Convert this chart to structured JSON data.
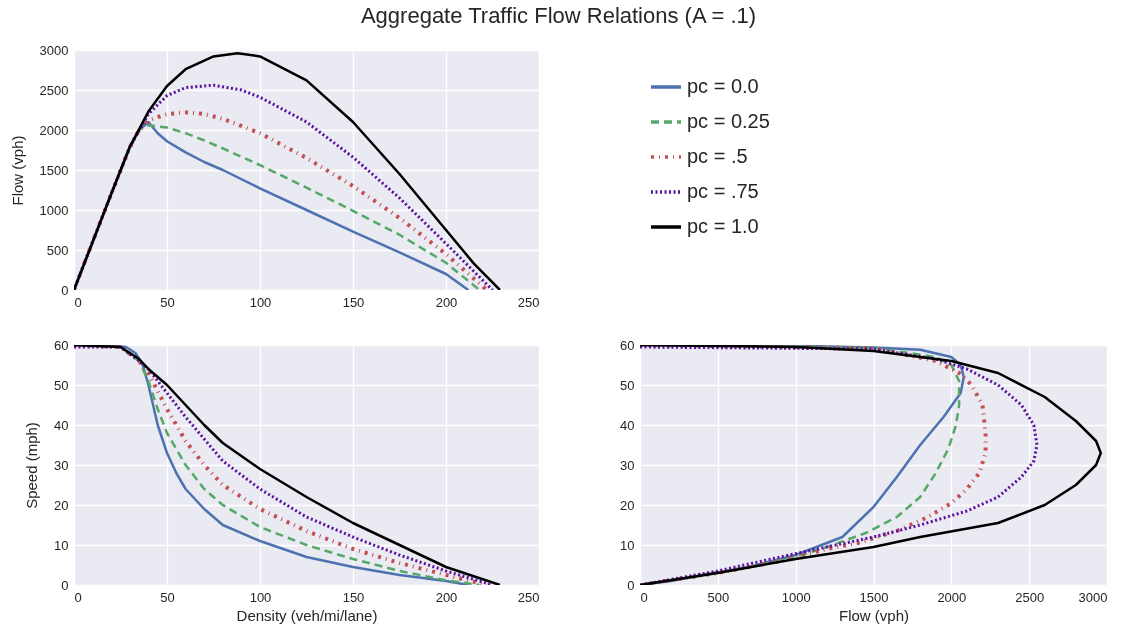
{
  "chart_data": [
    {
      "type": "line",
      "title": "Aggregate Traffic Flow Relations (A = .1)",
      "ylabel": "Flow (vph)",
      "xlim": [
        0,
        250
      ],
      "xticks": [
        0,
        50,
        100,
        150,
        200,
        250
      ],
      "ylim": [
        0,
        3000
      ],
      "yticks": [
        0,
        500,
        1000,
        1500,
        2000,
        2500,
        3000
      ],
      "grid": true,
      "legend": "right",
      "marker": "none",
      "series": [
        {
          "name": "pc = 0.0",
          "color": "#4c72b0",
          "line_style": "solid",
          "x": [
            0,
            10,
            20,
            30,
            35,
            40,
            45,
            50,
            60,
            70,
            80,
            100,
            125,
            150,
            175,
            200,
            212
          ],
          "values": [
            0,
            600,
            1200,
            1780,
            2000,
            2100,
            1960,
            1860,
            1720,
            1600,
            1500,
            1270,
            1000,
            730,
            470,
            200,
            0
          ]
        },
        {
          "name": "pc = 0.25",
          "color": "#55a868",
          "line_style": "dashed",
          "x": [
            0,
            10,
            20,
            30,
            35,
            40,
            50,
            60,
            70,
            80,
            100,
            125,
            150,
            175,
            200,
            218
          ],
          "values": [
            0,
            600,
            1200,
            1780,
            2000,
            2060,
            2030,
            1960,
            1870,
            1770,
            1560,
            1280,
            990,
            690,
            340,
            0
          ]
        },
        {
          "name": "pc = .5",
          "color": "#c44e52",
          "line_style": "dashdot",
          "x": [
            0,
            10,
            20,
            30,
            35,
            40,
            50,
            60,
            70,
            80,
            100,
            125,
            150,
            175,
            200,
            222
          ],
          "values": [
            0,
            600,
            1200,
            1780,
            2000,
            2120,
            2200,
            2220,
            2200,
            2140,
            1960,
            1650,
            1300,
            900,
            450,
            0
          ]
        },
        {
          "name": "pc = .75",
          "color": "#5a0fa0",
          "line_style": "dotted",
          "x": [
            0,
            10,
            20,
            30,
            40,
            50,
            60,
            75,
            90,
            100,
            125,
            150,
            175,
            200,
            225
          ],
          "values": [
            0,
            600,
            1200,
            1790,
            2200,
            2430,
            2530,
            2560,
            2500,
            2410,
            2100,
            1660,
            1150,
            580,
            0
          ]
        },
        {
          "name": "pc = 1.0",
          "color": "#000000",
          "line_style": "solid",
          "x": [
            0,
            10,
            20,
            30,
            40,
            50,
            60,
            75,
            88,
            100,
            125,
            150,
            175,
            200,
            215,
            229
          ],
          "values": [
            0,
            600,
            1200,
            1790,
            2230,
            2550,
            2760,
            2920,
            2960,
            2920,
            2620,
            2100,
            1450,
            750,
            330,
            0
          ]
        }
      ]
    },
    {
      "type": "line",
      "xlabel": "Density (veh/mi/lane)",
      "ylabel": "Speed (mph)",
      "xlim": [
        0,
        250
      ],
      "xticks": [
        0,
        50,
        100,
        150,
        200,
        250
      ],
      "ylim": [
        0,
        60
      ],
      "yticks": [
        0,
        10,
        20,
        30,
        40,
        50,
        60
      ],
      "grid": true,
      "marker": "none",
      "series": [
        {
          "name": "pc = 0.0",
          "color": "#4c72b0",
          "line_style": "solid",
          "x": [
            0,
            20,
            28,
            33,
            37,
            40,
            42,
            45,
            50,
            55,
            60,
            70,
            80,
            100,
            125,
            150,
            175,
            200,
            212
          ],
          "values": [
            60,
            59.8,
            59.5,
            58,
            55,
            50,
            46,
            40,
            33,
            28,
            24,
            19,
            15,
            11,
            7,
            4.5,
            2.5,
            1,
            0
          ]
        },
        {
          "name": "pc = 0.25",
          "color": "#55a868",
          "line_style": "dashed",
          "x": [
            0,
            25,
            35,
            40,
            45,
            50,
            60,
            70,
            80,
            100,
            125,
            150,
            175,
            200,
            218
          ],
          "values": [
            60,
            59.5,
            56,
            51,
            44,
            38,
            30,
            24,
            20,
            14.5,
            10,
            6.5,
            3.5,
            1.2,
            0
          ]
        },
        {
          "name": "pc = .5",
          "color": "#c44e52",
          "line_style": "dashdot",
          "x": [
            0,
            25,
            35,
            40,
            50,
            60,
            70,
            80,
            100,
            125,
            150,
            175,
            200,
            222
          ],
          "values": [
            60,
            59.5,
            56,
            53,
            44,
            36,
            30,
            25,
            19,
            13.5,
            9,
            5.5,
            2.5,
            0
          ]
        },
        {
          "name": "pc = .75",
          "color": "#5a0fa0",
          "line_style": "dotted",
          "x": [
            0,
            25,
            35,
            40,
            50,
            60,
            70,
            80,
            100,
            125,
            150,
            175,
            200,
            225
          ],
          "values": [
            59.5,
            59.5,
            56,
            54,
            48,
            42,
            36.5,
            31,
            24,
            17,
            12,
            7.5,
            3.5,
            0
          ]
        },
        {
          "name": "pc = 1.0",
          "color": "#000000",
          "line_style": "solid",
          "x": [
            0,
            25,
            35,
            40,
            50,
            60,
            70,
            80,
            100,
            125,
            150,
            175,
            200,
            229
          ],
          "values": [
            60,
            59.5,
            56.5,
            54,
            50,
            45,
            40,
            35.5,
            29,
            22,
            15.5,
            10,
            4.5,
            0
          ]
        }
      ]
    },
    {
      "type": "line",
      "xlabel": "Flow (vph)",
      "xlim": [
        0,
        3000
      ],
      "xticks": [
        0,
        500,
        1000,
        1500,
        2000,
        2500,
        3000
      ],
      "ylim": [
        0,
        60
      ],
      "yticks": [
        0,
        10,
        20,
        30,
        40,
        50,
        60
      ],
      "grid": true,
      "marker": "none",
      "series": [
        {
          "name": "pc = 0.0",
          "color": "#4c72b0",
          "line_style": "solid",
          "x": [
            0,
            1000,
            1500,
            1800,
            2000,
            2060,
            2080,
            2060,
            1950,
            1800,
            1650,
            1500,
            1300,
            1000,
            700,
            400,
            200,
            0
          ],
          "values": [
            60,
            59.8,
            59.4,
            58.8,
            57,
            55,
            52,
            48,
            42,
            35,
            27,
            19.5,
            12,
            7.5,
            4.5,
            2.5,
            1,
            0
          ]
        },
        {
          "name": "pc = 0.25",
          "color": "#55a868",
          "line_style": "dashed",
          "x": [
            0,
            1500,
            1900,
            2000,
            2050,
            2050,
            2030,
            1980,
            1900,
            1800,
            1650,
            1450,
            1200,
            1000,
            700,
            400,
            0
          ],
          "values": [
            60,
            59.3,
            57,
            55,
            51,
            45,
            40,
            34,
            28,
            22,
            17,
            13,
            9.5,
            7,
            4.5,
            2.5,
            0
          ]
        },
        {
          "name": "pc = .5",
          "color": "#c44e52",
          "line_style": "dashdot",
          "x": [
            0,
            1500,
            1900,
            2050,
            2130,
            2200,
            2220,
            2220,
            2180,
            2100,
            2000,
            1850,
            1650,
            1400,
            1200,
            900,
            500,
            0
          ],
          "values": [
            60,
            59.2,
            56,
            53,
            50,
            45,
            38,
            33,
            28,
            24,
            20.5,
            17,
            13.5,
            10.5,
            9,
            6,
            3,
            0
          ]
        },
        {
          "name": "pc = .75",
          "color": "#5a0fa0",
          "line_style": "dotted",
          "x": [
            0,
            1500,
            1900,
            2100,
            2300,
            2450,
            2530,
            2550,
            2530,
            2450,
            2300,
            2100,
            1800,
            1500,
            1200,
            900,
            500,
            0
          ],
          "values": [
            59.5,
            59,
            56.5,
            54,
            50,
            45,
            40,
            35,
            31,
            27,
            22,
            18.5,
            15,
            12,
            9.5,
            7,
            3.5,
            0
          ]
        },
        {
          "name": "pc = 1.0",
          "color": "#000000",
          "line_style": "solid",
          "x": [
            0,
            1000,
            1500,
            2000,
            2300,
            2600,
            2800,
            2930,
            2960,
            2930,
            2800,
            2600,
            2300,
            1800,
            1500,
            1000,
            500,
            0
          ],
          "values": [
            60,
            59.5,
            58.5,
            56,
            53,
            47,
            41,
            36,
            33,
            30,
            25,
            20,
            15.5,
            12,
            9.5,
            6.5,
            3,
            0
          ]
        }
      ]
    }
  ]
}
